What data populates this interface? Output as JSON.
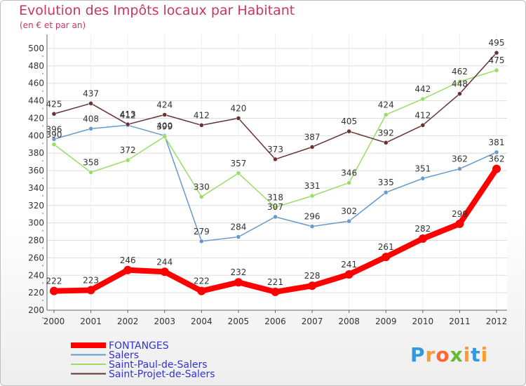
{
  "chart_data": {
    "type": "line",
    "title": "Evolution des Impôts locaux par Habitant",
    "subtitle": "(en € et par an)",
    "x": [
      "2000",
      "2001",
      "2002",
      "2003",
      "2004",
      "2005",
      "2006",
      "2007",
      "2008",
      "2009",
      "2010",
      "2011",
      "2012"
    ],
    "ylim": [
      200,
      500
    ],
    "yticks": [
      200,
      220,
      240,
      260,
      280,
      300,
      320,
      340,
      360,
      380,
      400,
      420,
      440,
      460,
      480,
      500
    ],
    "grid": "horizontal",
    "legend_position": "bottom-left",
    "series": [
      {
        "name": "FONTANGES",
        "color": "#ff0000",
        "emphasis": true,
        "values": [
          222,
          223,
          246,
          244,
          222,
          232,
          221,
          228,
          241,
          261,
          282,
          299,
          362
        ]
      },
      {
        "name": "Salers",
        "color": "#6699cc",
        "values": [
          396,
          408,
          412,
          400,
          279,
          284,
          307,
          296,
          302,
          335,
          351,
          362,
          381
        ]
      },
      {
        "name": "Saint-Paul-de-Salers",
        "color": "#99dd66",
        "values": [
          390,
          358,
          372,
          399,
          330,
          357,
          318,
          331,
          346,
          424,
          442,
          462,
          475
        ]
      },
      {
        "name": "Saint-Projet-de-Salers",
        "color": "#663333",
        "values": [
          425,
          437,
          413,
          424,
          412,
          420,
          373,
          387,
          405,
          392,
          412,
          448,
          495
        ]
      }
    ]
  },
  "logo": {
    "text": "Proxiti",
    "letters": [
      {
        "ch": "P",
        "color": "#3399dd"
      },
      {
        "ch": "r",
        "color": "#ff9933"
      },
      {
        "ch": "o",
        "color": "#ff6633"
      },
      {
        "ch": "x",
        "color": "#66bb33"
      },
      {
        "ch": "i",
        "color": "#ff9933"
      },
      {
        "ch": "t",
        "color": "#3399dd"
      },
      {
        "ch": "i",
        "color": "#ff9933"
      }
    ]
  }
}
